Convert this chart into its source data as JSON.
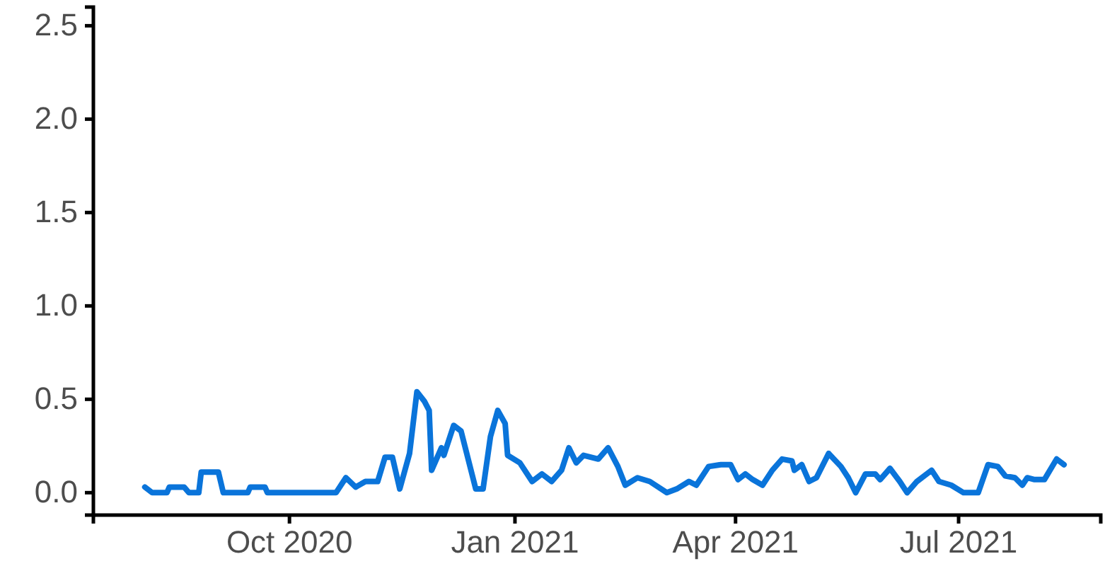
{
  "chart_data": {
    "type": "line",
    "xlim": [
      "2020-07-13",
      "2021-08-28"
    ],
    "xticks": [
      {
        "value": "2020-10-01",
        "label": "Oct 2020"
      },
      {
        "value": "2021-01-01",
        "label": "Jan 2021"
      },
      {
        "value": "2021-04-01",
        "label": "Apr 2021"
      },
      {
        "value": "2021-07-01",
        "label": "Jul 2021"
      }
    ],
    "ylim": [
      -0.12,
      2.6
    ],
    "yticks": [
      {
        "value": 0,
        "label": "0.0"
      },
      {
        "value": 0.5,
        "label": "0.5"
      },
      {
        "value": 1,
        "label": "1.0"
      },
      {
        "value": 1.5,
        "label": "1.5"
      },
      {
        "value": 2,
        "label": "2.0"
      },
      {
        "value": 2.5,
        "label": "2.5"
      }
    ],
    "grid": false,
    "series": [
      {
        "color": "#0a74da",
        "x": [
          "2020-08-03",
          "2020-08-06",
          "2020-08-12",
          "2020-08-13",
          "2020-08-19",
          "2020-08-21",
          "2020-08-25",
          "2020-08-26",
          "2020-09-02",
          "2020-09-04",
          "2020-09-14",
          "2020-09-15",
          "2020-09-21",
          "2020-09-22",
          "2020-10-20",
          "2020-10-24",
          "2020-10-28",
          "2020-11-01",
          "2020-11-06",
          "2020-11-09",
          "2020-11-12",
          "2020-11-15",
          "2020-11-19",
          "2020-11-22",
          "2020-11-25",
          "2020-11-27",
          "2020-11-28",
          "2020-12-02",
          "2020-12-03",
          "2020-12-07",
          "2020-12-10",
          "2020-12-16",
          "2020-12-19",
          "2020-12-22",
          "2020-12-25",
          "2020-12-28",
          "2020-12-29",
          "2021-01-03",
          "2021-01-08",
          "2021-01-12",
          "2021-01-16",
          "2021-01-20",
          "2021-01-23",
          "2021-01-26",
          "2021-01-29",
          "2021-02-04",
          "2021-02-08",
          "2021-02-12",
          "2021-02-15",
          "2021-02-20",
          "2021-02-25",
          "2021-03-04",
          "2021-03-08",
          "2021-03-13",
          "2021-03-16",
          "2021-03-21",
          "2021-03-26",
          "2021-03-30",
          "2021-04-02",
          "2021-04-05",
          "2021-04-08",
          "2021-04-12",
          "2021-04-16",
          "2021-04-20",
          "2021-04-24",
          "2021-04-25",
          "2021-04-28",
          "2021-05-01",
          "2021-05-04",
          "2021-05-09",
          "2021-05-14",
          "2021-05-17",
          "2021-05-20",
          "2021-05-24",
          "2021-05-28",
          "2021-05-30",
          "2021-06-03",
          "2021-06-07",
          "2021-06-10",
          "2021-06-14",
          "2021-06-20",
          "2021-06-23",
          "2021-06-28",
          "2021-07-03",
          "2021-07-09",
          "2021-07-13",
          "2021-07-17",
          "2021-07-20",
          "2021-07-24",
          "2021-07-27",
          "2021-07-29",
          "2021-08-01",
          "2021-08-05",
          "2021-08-10",
          "2021-08-13"
        ],
        "values": [
          0.03,
          0,
          0,
          0.03,
          0.03,
          0,
          0,
          0.11,
          0.11,
          0,
          0,
          0.03,
          0.03,
          0,
          0,
          0.08,
          0.03,
          0.06,
          0.06,
          0.19,
          0.19,
          0.02,
          0.21,
          0.54,
          0.49,
          0.44,
          0.12,
          0.24,
          0.2,
          0.36,
          0.33,
          0.02,
          0.02,
          0.3,
          0.44,
          0.37,
          0.2,
          0.16,
          0.06,
          0.1,
          0.06,
          0.12,
          0.24,
          0.16,
          0.2,
          0.18,
          0.24,
          0.14,
          0.04,
          0.08,
          0.06,
          0,
          0.02,
          0.06,
          0.04,
          0.14,
          0.15,
          0.15,
          0.07,
          0.1,
          0.07,
          0.04,
          0.12,
          0.18,
          0.17,
          0.12,
          0.15,
          0.06,
          0.08,
          0.21,
          0.14,
          0.08,
          0,
          0.1,
          0.1,
          0.07,
          0.13,
          0.06,
          0,
          0.06,
          0.12,
          0.06,
          0.04,
          0,
          0,
          0.15,
          0.14,
          0.09,
          0.08,
          0.04,
          0.08,
          0.07,
          0.07,
          0.18,
          0.15
        ]
      }
    ]
  }
}
